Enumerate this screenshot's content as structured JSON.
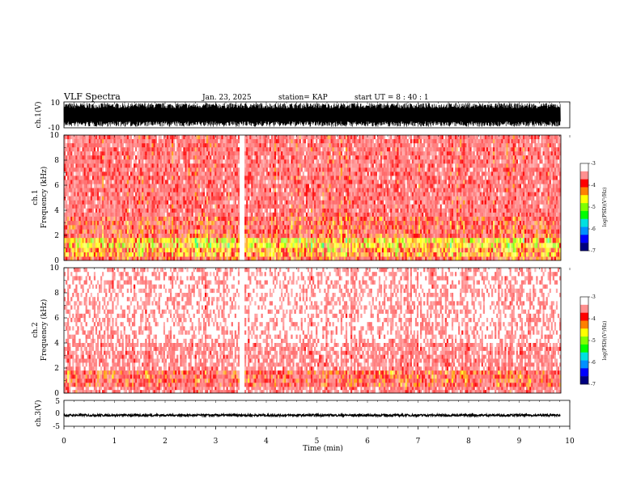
{
  "header": {
    "title": "VLF Spectra",
    "date": "Jan. 23, 2025",
    "station": "station= KAP",
    "start": "start  UT =   8  : 40 : 1"
  },
  "colors": {
    "spectrum": [
      "#ffffff",
      "#ff0000",
      "#ffa000",
      "#ffff00",
      "#80ff00",
      "#00ff00",
      "#00c0ff",
      "#0000ff",
      "#000060"
    ],
    "trace": "#000000"
  },
  "chart_data": [
    {
      "type": "line",
      "panel": "ch1-waveform",
      "ylabel": "ch.1(V)",
      "ylim": [
        -10,
        10
      ],
      "yticks": [
        "10",
        "-10"
      ],
      "description_series": "dense oscillating waveform, amplitude near full scale",
      "values_range": [
        -10,
        10
      ]
    },
    {
      "type": "heatmap",
      "panel": "ch1-spectrogram",
      "ylabel": "ch.1",
      "ylabel2": "Frequency (kHz)",
      "ylim": [
        0,
        10
      ],
      "yticks": [
        "0",
        "2",
        "4",
        "6",
        "8",
        "10"
      ],
      "xlim": [
        0,
        10
      ],
      "colorbar": {
        "label": "log(PSD)(V²/Hz)",
        "range": [
          -7,
          -3
        ],
        "ticks": [
          "-3",
          "-4",
          "-5",
          "-6",
          "-7"
        ]
      },
      "bands": [
        {
          "f_low": 0.0,
          "f_high": 0.3,
          "level": -4.3
        },
        {
          "f_low": 0.3,
          "f_high": 1.0,
          "level": -4.6
        },
        {
          "f_low": 1.0,
          "f_high": 1.8,
          "level": -4.8
        },
        {
          "f_low": 1.8,
          "f_high": 3.5,
          "level": -4.2
        },
        {
          "f_low": 3.5,
          "f_high": 10.0,
          "level": -3.9
        }
      ]
    },
    {
      "type": "heatmap",
      "panel": "ch2-spectrogram",
      "ylabel": "ch.2",
      "ylabel2": "Frequency (kHz)",
      "ylim": [
        0,
        10
      ],
      "yticks": [
        "0",
        "2",
        "4",
        "6",
        "8",
        "10"
      ],
      "xlim": [
        0,
        10
      ],
      "colorbar": {
        "label": "log(PSD)(V²/Hz)",
        "range": [
          -7,
          -3
        ],
        "ticks": [
          "-3",
          "-4",
          "-5",
          "-6",
          "-7"
        ]
      },
      "bands": [
        {
          "f_low": 0.0,
          "f_high": 0.5,
          "level": -3.8
        },
        {
          "f_low": 0.5,
          "f_high": 1.8,
          "level": -4.2
        },
        {
          "f_low": 1.8,
          "f_high": 4.0,
          "level": -3.7
        },
        {
          "f_low": 4.0,
          "f_high": 10.0,
          "level": -3.4
        }
      ]
    },
    {
      "type": "line",
      "panel": "ch3-waveform",
      "ylabel": "ch.3(V)",
      "ylim": [
        -5,
        5
      ],
      "yticks": [
        "5",
        "0",
        "-5"
      ],
      "xlabel": "Time (min)",
      "xlim": [
        0,
        10
      ],
      "xticks": [
        "0",
        "1",
        "2",
        "3",
        "4",
        "5",
        "6",
        "7",
        "8",
        "9",
        "10"
      ],
      "values_range": [
        -1.2,
        -0.4
      ]
    }
  ]
}
